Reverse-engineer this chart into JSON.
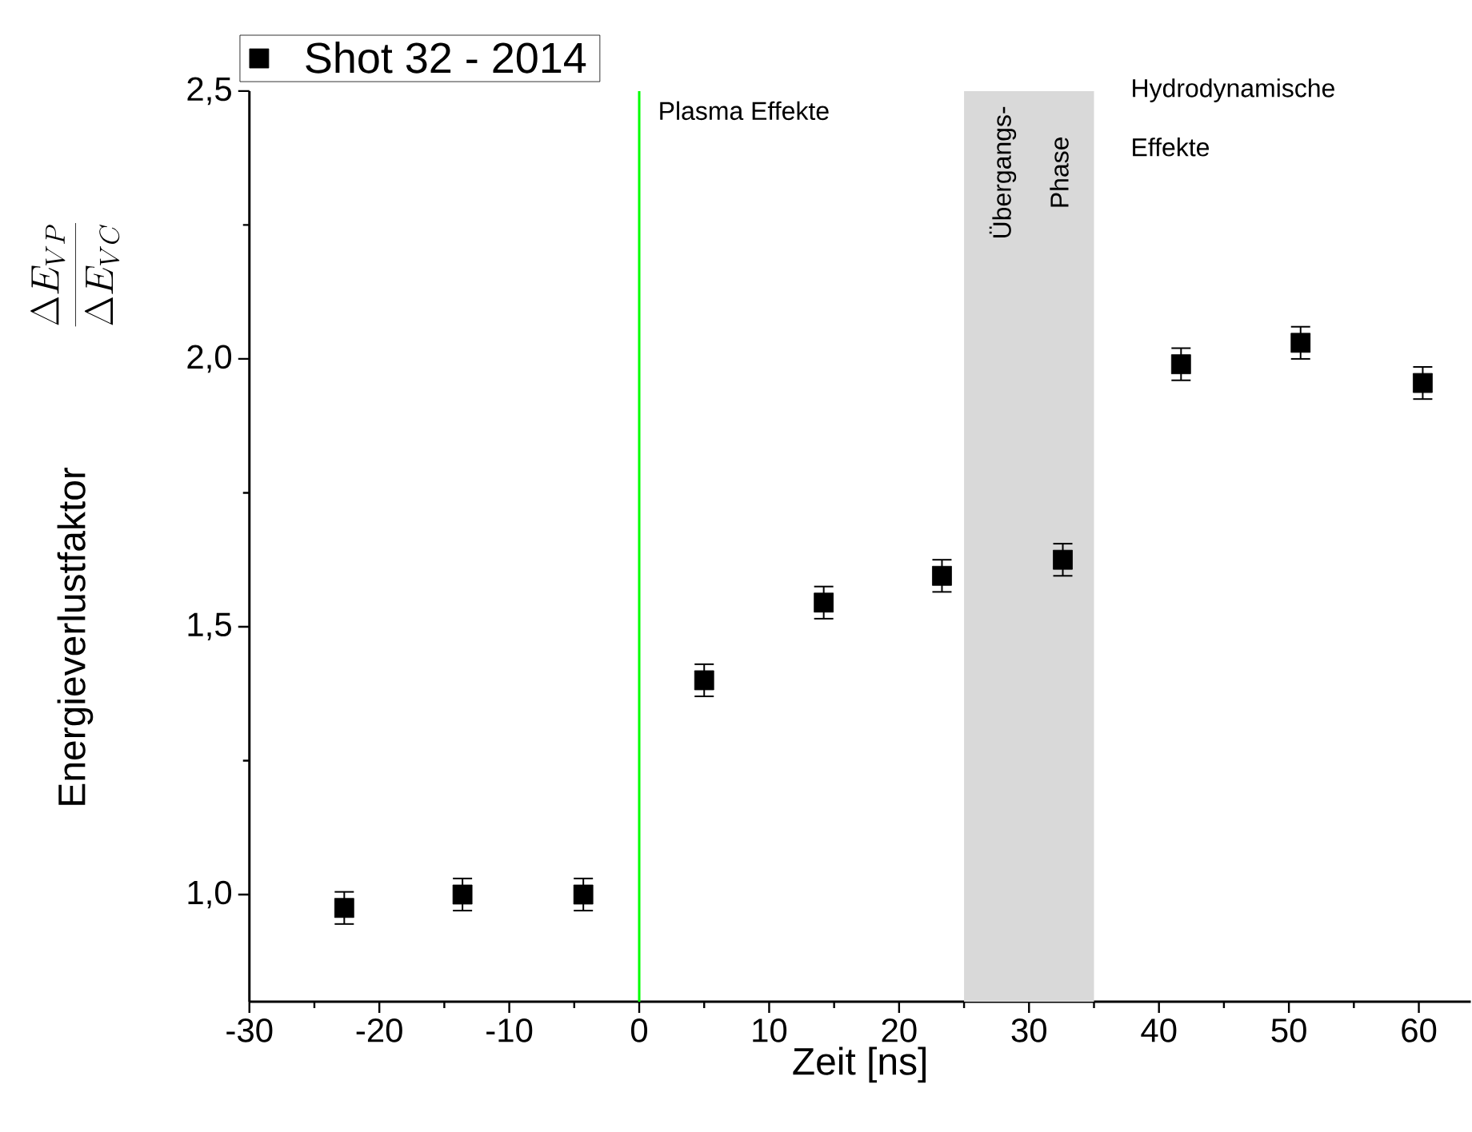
{
  "chart_data": {
    "type": "scatter",
    "xlabel": "Zeit [ns]",
    "ylabel": "Energieverlustfaktor",
    "x": [
      -22.7,
      -13.6,
      -4.3,
      5.0,
      14.2,
      23.3,
      32.6,
      41.7,
      50.9,
      60.3
    ],
    "series": [
      {
        "name": "Shot 32 - 2014",
        "color": "#000000",
        "values": [
          0.975,
          1.0,
          1.0,
          1.4,
          1.545,
          1.595,
          1.625,
          1.99,
          2.03,
          1.955
        ],
        "errors": [
          0.03,
          0.03,
          0.03,
          0.03,
          0.03,
          0.03,
          0.03,
          0.03,
          0.03,
          0.03
        ]
      }
    ],
    "xlim": [
      -30,
      64
    ],
    "xticks": [
      -30,
      -20,
      -10,
      0,
      10,
      20,
      30,
      40,
      50,
      60
    ],
    "ylim": [
      0.8,
      2.5
    ],
    "yticks": [
      {
        "value": 1.0,
        "label": "1,0"
      },
      {
        "value": 1.5,
        "label": "1,5"
      },
      {
        "value": 2.0,
        "label": "2,0"
      },
      {
        "value": 2.5,
        "label": "2,5"
      }
    ],
    "marker": "square",
    "legend": "top left",
    "grid": false,
    "ref_lines": [
      {
        "axis": "x",
        "value": 0,
        "color": "#00ff00"
      }
    ],
    "bands": [
      {
        "axis": "x",
        "from": 25,
        "to": 35,
        "label": "Übergangs- Phase",
        "color": "#d9d9d9"
      }
    ],
    "annotations": [
      "Plasma Effekte",
      "Hydrodynamische Effekte",
      "\\frac{\\Delta E_{VP}}{\\Delta E_{VC}}"
    ]
  }
}
